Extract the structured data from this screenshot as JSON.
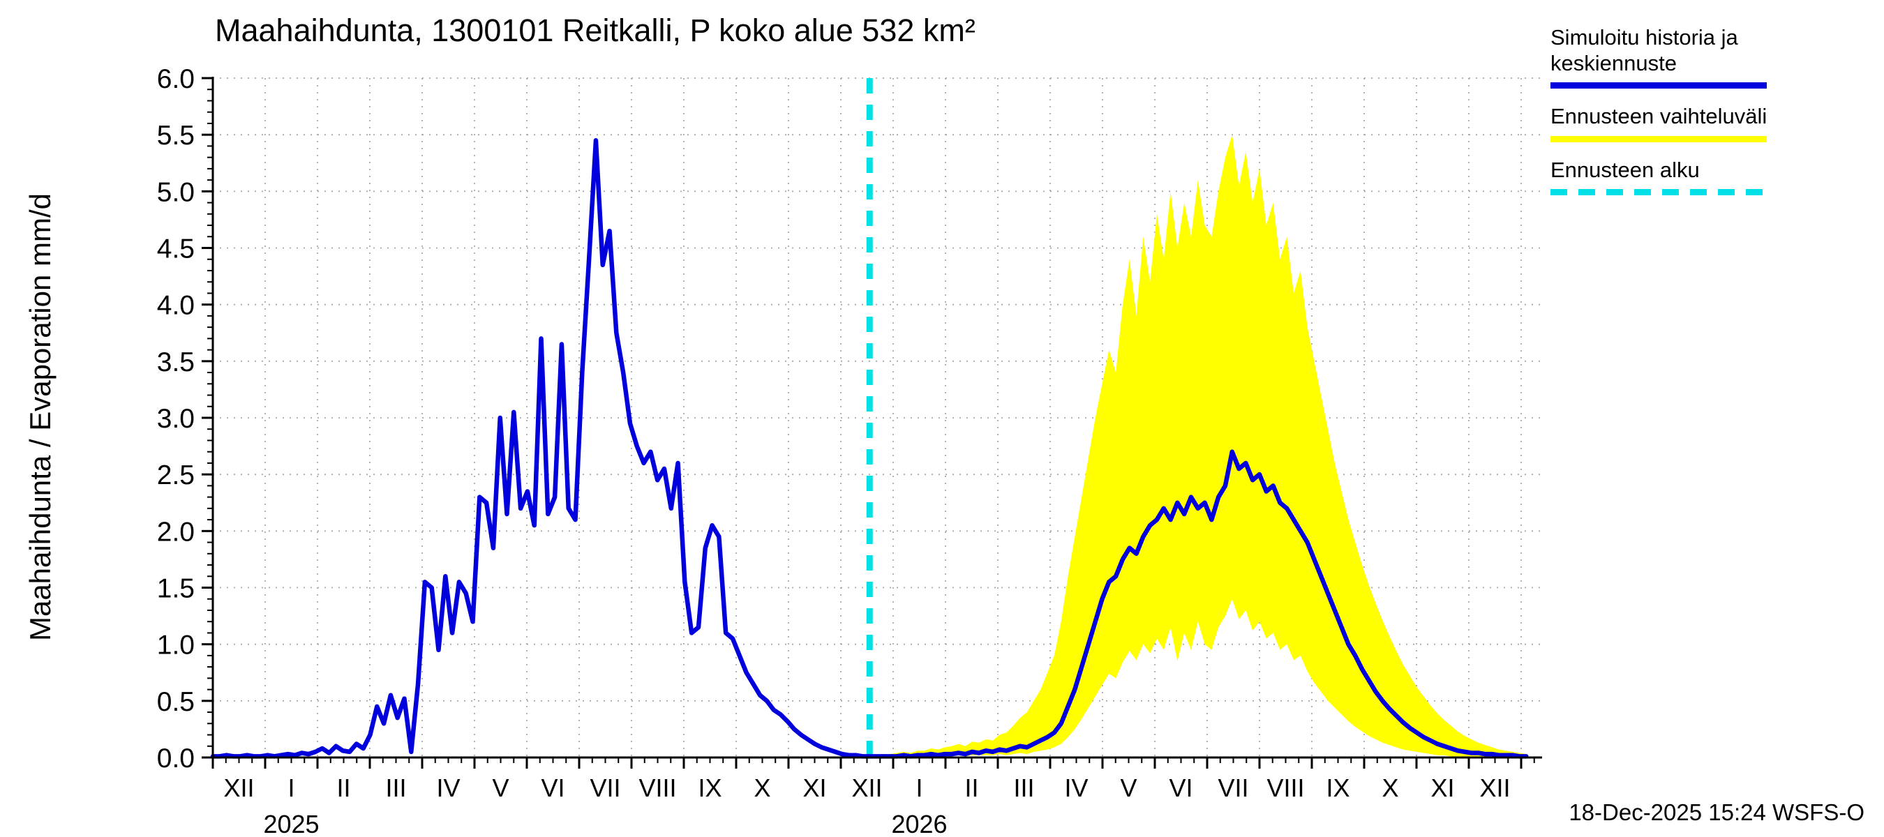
{
  "title": "Maahaihdunta, 1300101 Reitkalli, P koko alue 532 km²",
  "y_axis_label": "Maahaihdunta / Evaporation  mm/d",
  "timestamp": "18-Dec-2025 15:24 WSFS-O",
  "colors": {
    "history_line": "#0000dd",
    "forecast_band": "#ffff00",
    "forecast_start": "#00e0e6",
    "grid": "#a8a8a8",
    "axis": "#000000"
  },
  "legend": [
    {
      "id": "history",
      "label": "Simuloitu historia ja keskiennuste",
      "color": "#0000dd",
      "style": "solid"
    },
    {
      "id": "range",
      "label": "Ennusteen vaihteluväli",
      "color": "#ffff00",
      "style": "solid"
    },
    {
      "id": "forecast-start",
      "label": "Ennusteen alku",
      "color": "#00e0e6",
      "style": "dashed"
    }
  ],
  "chart_data": {
    "type": "line",
    "title": "Maahaihdunta, 1300101 Reitkalli, P koko alue 532 km²",
    "xlabel": "",
    "ylabel": "Maahaihdunta / Evaporation  mm/d",
    "ylim": [
      0,
      6
    ],
    "y_tick_step": 0.5,
    "y_ticks": [
      "0.0",
      "0.5",
      "1.0",
      "1.5",
      "2.0",
      "2.5",
      "3.0",
      "3.5",
      "4.0",
      "4.5",
      "5.0",
      "5.5",
      "6.0"
    ],
    "x_tick_labels": [
      "XII",
      "I",
      "II",
      "III",
      "IV",
      "V",
      "VI",
      "VII",
      "VIII",
      "IX",
      "X",
      "XI",
      "XII",
      "I",
      "II",
      "III",
      "IV",
      "V",
      "VI",
      "VII",
      "VIII",
      "IX",
      "X",
      "XI",
      "XII"
    ],
    "years": [
      {
        "label": "2025",
        "month_index": 1
      },
      {
        "label": "2026",
        "month_index": 13
      }
    ],
    "months_span": 25.4,
    "forecast_start_month": 12.55,
    "grid": true,
    "legend_position": "top-right",
    "series": [
      {
        "name": "Simuloitu historia",
        "role": "line",
        "color": "#0000dd",
        "t0": 0,
        "dt": 0.1307,
        "values": [
          0.01,
          0.01,
          0.02,
          0.01,
          0.01,
          0.02,
          0.01,
          0.01,
          0.02,
          0.01,
          0.02,
          0.03,
          0.02,
          0.04,
          0.03,
          0.05,
          0.08,
          0.04,
          0.1,
          0.06,
          0.05,
          0.12,
          0.08,
          0.2,
          0.45,
          0.3,
          0.55,
          0.35,
          0.52,
          0.05,
          0.65,
          1.55,
          1.5,
          0.95,
          1.6,
          1.1,
          1.55,
          1.45,
          1.2,
          2.3,
          2.25,
          1.85,
          3.0,
          2.15,
          3.05,
          2.2,
          2.35,
          2.05,
          3.7,
          2.15,
          2.3,
          3.65,
          2.2,
          2.1,
          3.4,
          4.4,
          5.45,
          4.35,
          4.65,
          3.75,
          3.4,
          2.95,
          2.75,
          2.6,
          2.7,
          2.45,
          2.55,
          2.2,
          2.6,
          1.55,
          1.1,
          1.15,
          1.85,
          2.05,
          1.95,
          1.1,
          1.05,
          0.9,
          0.75,
          0.65,
          0.55,
          0.5,
          0.42,
          0.38,
          0.32,
          0.25,
          0.2,
          0.16,
          0.12,
          0.09,
          0.07,
          0.05,
          0.03,
          0.02,
          0.02,
          0.01,
          0.01
        ]
      },
      {
        "name": "Keskiennuste",
        "role": "line",
        "color": "#0000dd",
        "t0": 12.55,
        "dt": 0.1307,
        "values": [
          0.01,
          0.01,
          0.01,
          0.01,
          0.01,
          0.02,
          0.01,
          0.02,
          0.02,
          0.03,
          0.02,
          0.03,
          0.03,
          0.04,
          0.03,
          0.05,
          0.04,
          0.06,
          0.05,
          0.07,
          0.06,
          0.08,
          0.1,
          0.09,
          0.12,
          0.15,
          0.18,
          0.22,
          0.3,
          0.45,
          0.6,
          0.8,
          1.0,
          1.2,
          1.4,
          1.55,
          1.6,
          1.75,
          1.85,
          1.8,
          1.95,
          2.05,
          2.1,
          2.2,
          2.1,
          2.25,
          2.15,
          2.3,
          2.2,
          2.25,
          2.1,
          2.3,
          2.4,
          2.7,
          2.55,
          2.6,
          2.45,
          2.5,
          2.35,
          2.4,
          2.25,
          2.2,
          2.1,
          2.0,
          1.9,
          1.75,
          1.6,
          1.45,
          1.3,
          1.15,
          1.0,
          0.9,
          0.78,
          0.68,
          0.58,
          0.5,
          0.43,
          0.37,
          0.31,
          0.26,
          0.22,
          0.18,
          0.15,
          0.12,
          0.1,
          0.08,
          0.06,
          0.05,
          0.04,
          0.04,
          0.03,
          0.03,
          0.02,
          0.02,
          0.02,
          0.01,
          0.01
        ]
      },
      {
        "name": "Ennusteen vaihteluväli yläraja",
        "role": "band_upper",
        "color": "#ffff00",
        "t0": 12.55,
        "dt": 0.1307,
        "values": [
          0.02,
          0.02,
          0.03,
          0.03,
          0.04,
          0.05,
          0.04,
          0.06,
          0.06,
          0.08,
          0.07,
          0.09,
          0.1,
          0.12,
          0.1,
          0.14,
          0.13,
          0.16,
          0.15,
          0.2,
          0.22,
          0.28,
          0.35,
          0.4,
          0.5,
          0.6,
          0.75,
          0.9,
          1.2,
          1.6,
          1.95,
          2.3,
          2.65,
          3.0,
          3.3,
          3.6,
          3.4,
          4.0,
          4.4,
          3.9,
          4.6,
          4.2,
          4.8,
          4.4,
          5.0,
          4.5,
          4.9,
          4.6,
          5.1,
          4.7,
          4.6,
          5.0,
          5.3,
          5.5,
          5.05,
          5.35,
          4.9,
          5.2,
          4.7,
          4.9,
          4.4,
          4.6,
          4.1,
          4.3,
          3.8,
          3.5,
          3.2,
          2.9,
          2.6,
          2.35,
          2.1,
          1.9,
          1.7,
          1.52,
          1.36,
          1.21,
          1.07,
          0.94,
          0.82,
          0.72,
          0.62,
          0.54,
          0.46,
          0.39,
          0.33,
          0.28,
          0.23,
          0.19,
          0.16,
          0.13,
          0.11,
          0.09,
          0.07,
          0.06,
          0.05,
          0.04,
          0.03
        ]
      },
      {
        "name": "Ennusteen vaihteluväli alaraja",
        "role": "band_lower",
        "color": "#ffff00",
        "t0": 12.55,
        "dt": 0.1307,
        "values": [
          0,
          0,
          0,
          0,
          0,
          0.01,
          0,
          0.01,
          0.01,
          0.01,
          0.01,
          0.01,
          0.01,
          0.02,
          0.01,
          0.02,
          0.02,
          0.02,
          0.02,
          0.03,
          0.02,
          0.03,
          0.04,
          0.03,
          0.05,
          0.06,
          0.07,
          0.09,
          0.12,
          0.18,
          0.25,
          0.34,
          0.44,
          0.54,
          0.64,
          0.74,
          0.7,
          0.84,
          0.94,
          0.86,
          1.0,
          0.92,
          1.05,
          0.95,
          1.15,
          0.85,
          1.1,
          0.95,
          1.2,
          1.0,
          0.95,
          1.15,
          1.25,
          1.4,
          1.22,
          1.3,
          1.12,
          1.2,
          1.05,
          1.1,
          0.95,
          1.0,
          0.86,
          0.9,
          0.76,
          0.66,
          0.58,
          0.5,
          0.44,
          0.38,
          0.32,
          0.27,
          0.23,
          0.19,
          0.16,
          0.13,
          0.11,
          0.09,
          0.07,
          0.06,
          0.05,
          0.04,
          0.03,
          0.02,
          0.02,
          0.01,
          0.01,
          0.01,
          0.01,
          0,
          0,
          0,
          0,
          0,
          0,
          0,
          0
        ]
      }
    ]
  }
}
